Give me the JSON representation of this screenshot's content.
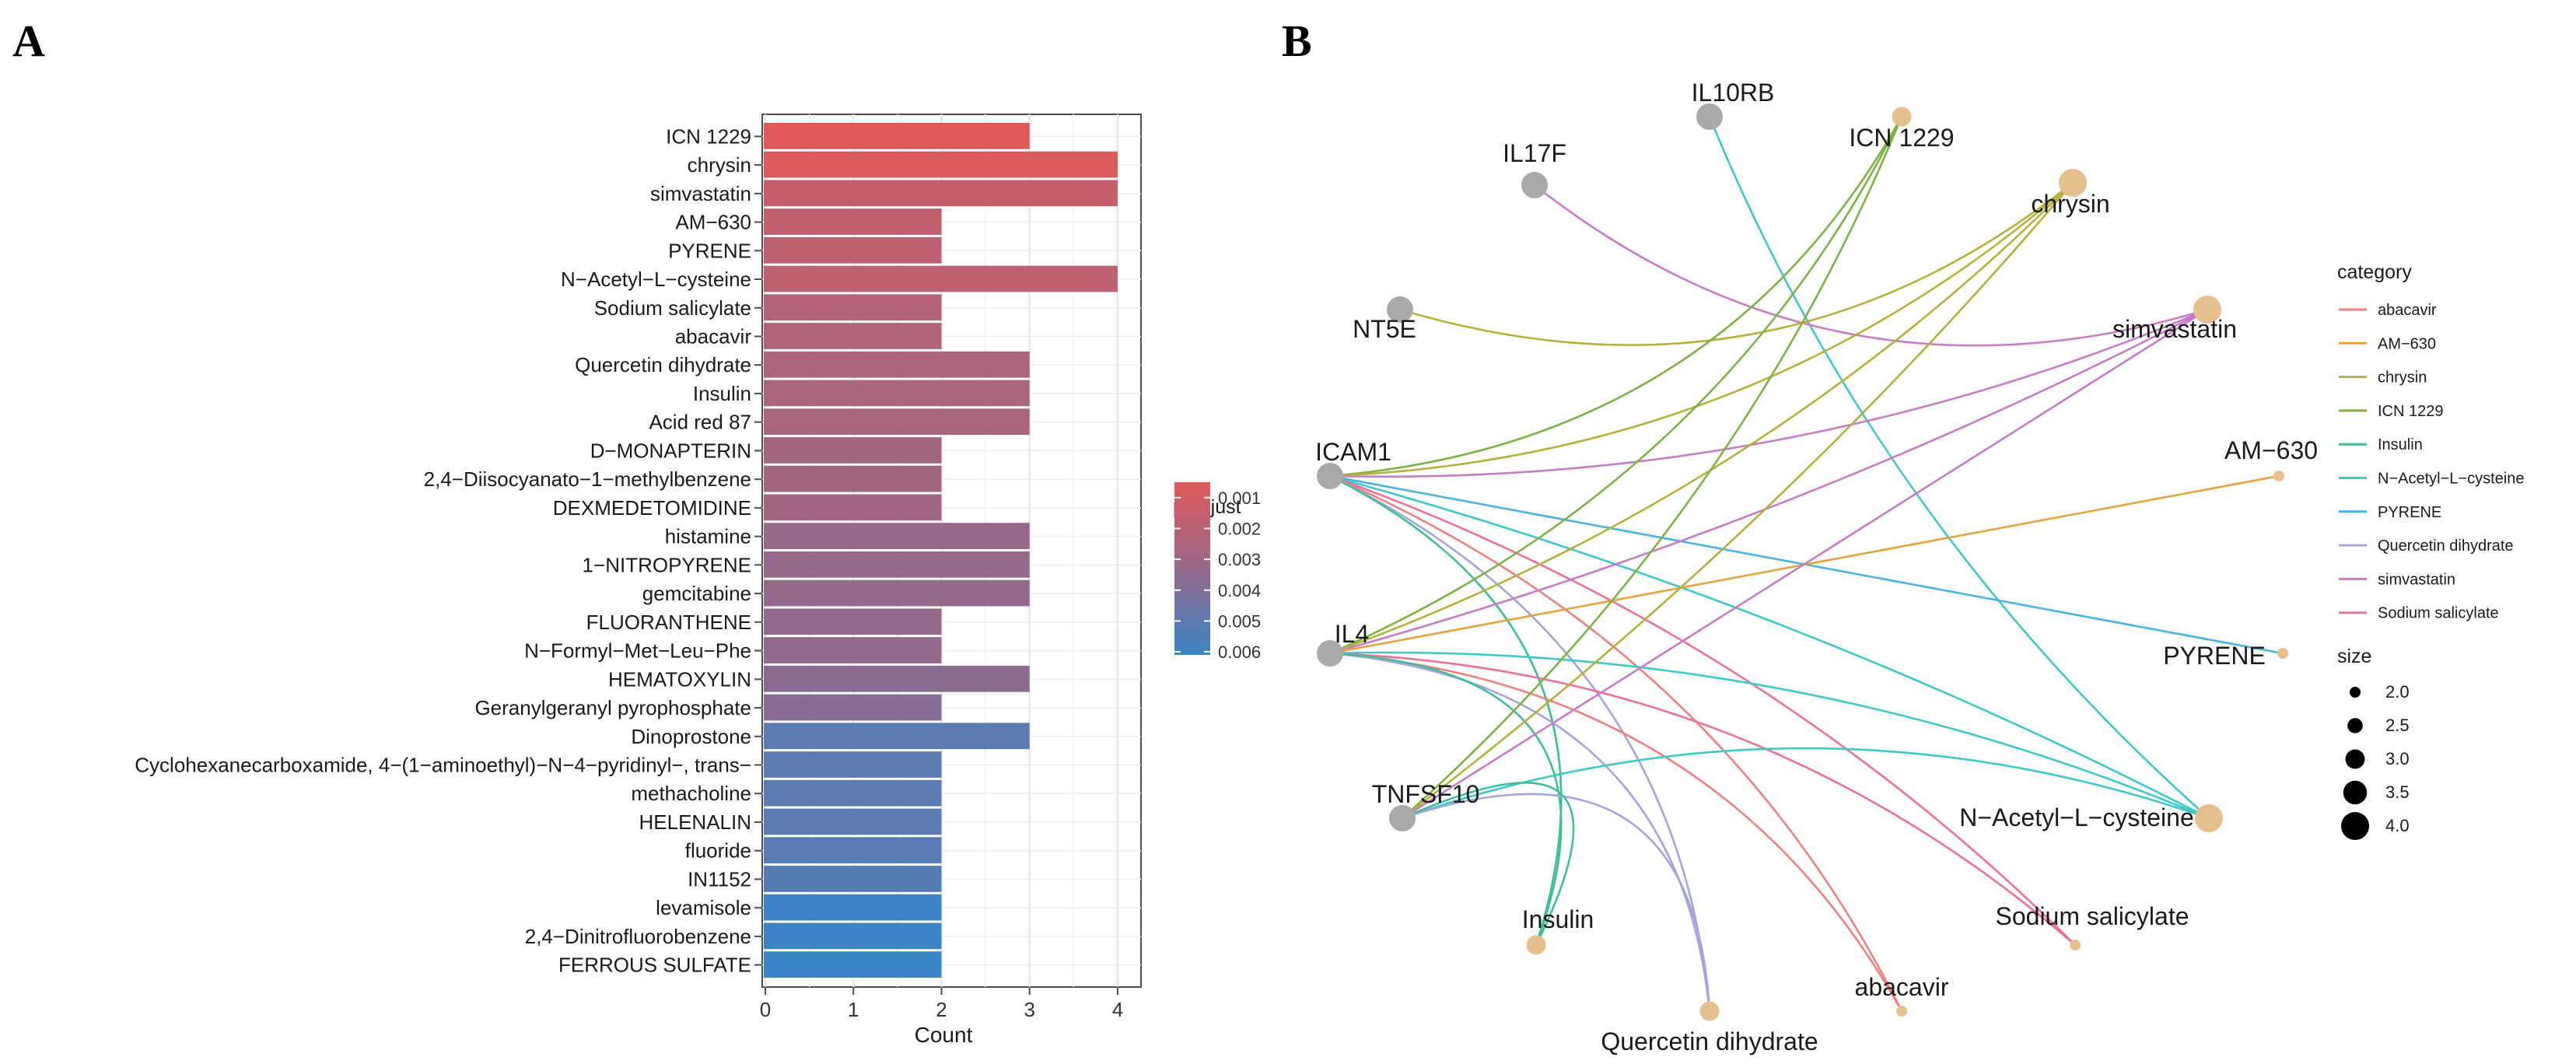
{
  "panels": {
    "a": "A",
    "b": "B"
  },
  "chart_data": [
    {
      "type": "bar",
      "xlabel": "Count",
      "xlim": [
        0,
        4.15
      ],
      "xticks": [
        0,
        1,
        2,
        3,
        4
      ],
      "grid": true,
      "orientation": "horizontal",
      "color_by": "p.adjust",
      "legend": {
        "title": "p.adjust",
        "placement": "right",
        "ticks": [
          "0.001",
          "0.002",
          "0.003",
          "0.004",
          "0.005",
          "0.006"
        ],
        "range": [
          0.0005,
          0.0061
        ],
        "colors": [
          "#e05a5a",
          "#96688a",
          "#3a85c6"
        ]
      },
      "categories": [
        "ICN 1229",
        "chrysin",
        "simvastatin",
        "AM−630",
        "PYRENE",
        "N−Acetyl−L−cysteine",
        "Sodium salicylate",
        "abacavir",
        "Quercetin dihydrate",
        "Insulin",
        "Acid red 87",
        "D−MONAPTERIN",
        "2,4−Diisocyanato−1−methylbenzene",
        "DEXMEDETOMIDINE",
        "histamine",
        "1−NITROPYRENE",
        "gemcitabine",
        "FLUORANTHENE",
        "N−Formyl−Met−Leu−Phe",
        "HEMATOXYLIN",
        "Geranylgeranyl pyrophosphate",
        "Dinoprostone",
        "Cyclohexanecarboxamide, 4−(1−aminoethyl)−N−4−pyridinyl−, trans−",
        "methacholine",
        "HELENALIN",
        "fluoride",
        "IN1152",
        "levamisole",
        "2,4−Dinitrofluorobenzene",
        "FERROUS SULFATE"
      ],
      "values": [
        3,
        4,
        4,
        2,
        2,
        4,
        2,
        2,
        3,
        3,
        3,
        2,
        2,
        2,
        3,
        3,
        3,
        2,
        2,
        3,
        2,
        3,
        2,
        2,
        2,
        2,
        2,
        2,
        2,
        2
      ],
      "p_adjust": [
        0.0005,
        0.0007,
        0.0015,
        0.0017,
        0.0018,
        0.0018,
        0.0022,
        0.0023,
        0.0025,
        0.0026,
        0.0026,
        0.0028,
        0.0028,
        0.0029,
        0.0032,
        0.0033,
        0.0033,
        0.0034,
        0.0034,
        0.0036,
        0.0037,
        0.0051,
        0.0051,
        0.0051,
        0.0051,
        0.0052,
        0.0053,
        0.006,
        0.006,
        0.0061
      ]
    },
    {
      "type": "network",
      "category_color": "#e6c08c",
      "gene_color": "#a9a9a9",
      "categories": [
        {
          "name": "ICN 1229",
          "size": 3,
          "color": "#7cb342"
        },
        {
          "name": "chrysin",
          "size": 4,
          "color": "#b5b13a"
        },
        {
          "name": "simvastatin",
          "size": 4,
          "color": "#c77cc7"
        },
        {
          "name": "AM−630",
          "size": 2,
          "color": "#e6a23c"
        },
        {
          "name": "PYRENE",
          "size": 2,
          "color": "#4ab3e6"
        },
        {
          "name": "N−Acetyl−L−cysteine",
          "size": 4,
          "color": "#3ec9c9"
        },
        {
          "name": "Sodium salicylate",
          "size": 2,
          "color": "#ef6f9c"
        },
        {
          "name": "abacavir",
          "size": 2,
          "color": "#f08080"
        },
        {
          "name": "Quercetin dihydrate",
          "size": 3,
          "color": "#a7a3dd"
        },
        {
          "name": "Insulin",
          "size": 3,
          "color": "#3dbf9a"
        }
      ],
      "genes": [
        "IL10RB",
        "IL17F",
        "NT5E",
        "ICAM1",
        "IL4",
        "TNFSF10"
      ],
      "edges": [
        [
          "IL10RB",
          "N−Acetyl−L−cysteine"
        ],
        [
          "IL17F",
          "simvastatin"
        ],
        [
          "NT5E",
          "chrysin"
        ],
        [
          "ICAM1",
          "ICN 1229"
        ],
        [
          "ICAM1",
          "chrysin"
        ],
        [
          "ICAM1",
          "simvastatin"
        ],
        [
          "ICAM1",
          "PYRENE"
        ],
        [
          "ICAM1",
          "N−Acetyl−L−cysteine"
        ],
        [
          "ICAM1",
          "Sodium salicylate"
        ],
        [
          "ICAM1",
          "abacavir"
        ],
        [
          "ICAM1",
          "Quercetin dihydrate"
        ],
        [
          "ICAM1",
          "Insulin"
        ],
        [
          "IL4",
          "ICN 1229"
        ],
        [
          "IL4",
          "chrysin"
        ],
        [
          "IL4",
          "simvastatin"
        ],
        [
          "IL4",
          "AM−630"
        ],
        [
          "IL4",
          "N−Acetyl−L−cysteine"
        ],
        [
          "IL4",
          "Sodium salicylate"
        ],
        [
          "IL4",
          "abacavir"
        ],
        [
          "IL4",
          "Quercetin dihydrate"
        ],
        [
          "IL4",
          "Insulin"
        ],
        [
          "TNFSF10",
          "ICN 1229"
        ],
        [
          "TNFSF10",
          "chrysin"
        ],
        [
          "TNFSF10",
          "simvastatin"
        ],
        [
          "TNFSF10",
          "N−Acetyl−L−cysteine"
        ],
        [
          "TNFSF10",
          "Quercetin dihydrate"
        ],
        [
          "TNFSF10",
          "Insulin"
        ]
      ],
      "legend": {
        "category_title": "category",
        "category_items": [
          "abacavir",
          "AM−630",
          "chrysin",
          "ICN 1229",
          "Insulin",
          "N−Acetyl−L−cysteine",
          "PYRENE",
          "Quercetin dihydrate",
          "simvastatin",
          "Sodium salicylate"
        ],
        "category_colors": [
          "#f08080",
          "#e6a23c",
          "#b5b13a",
          "#7cb342",
          "#3dbf9a",
          "#3ec9c9",
          "#4ab3e6",
          "#a7a3dd",
          "#c77cc7",
          "#ef6f9c"
        ],
        "size_title": "size",
        "size_items": [
          "2.0",
          "2.5",
          "3.0",
          "3.5",
          "4.0"
        ],
        "placement": "right"
      }
    }
  ]
}
